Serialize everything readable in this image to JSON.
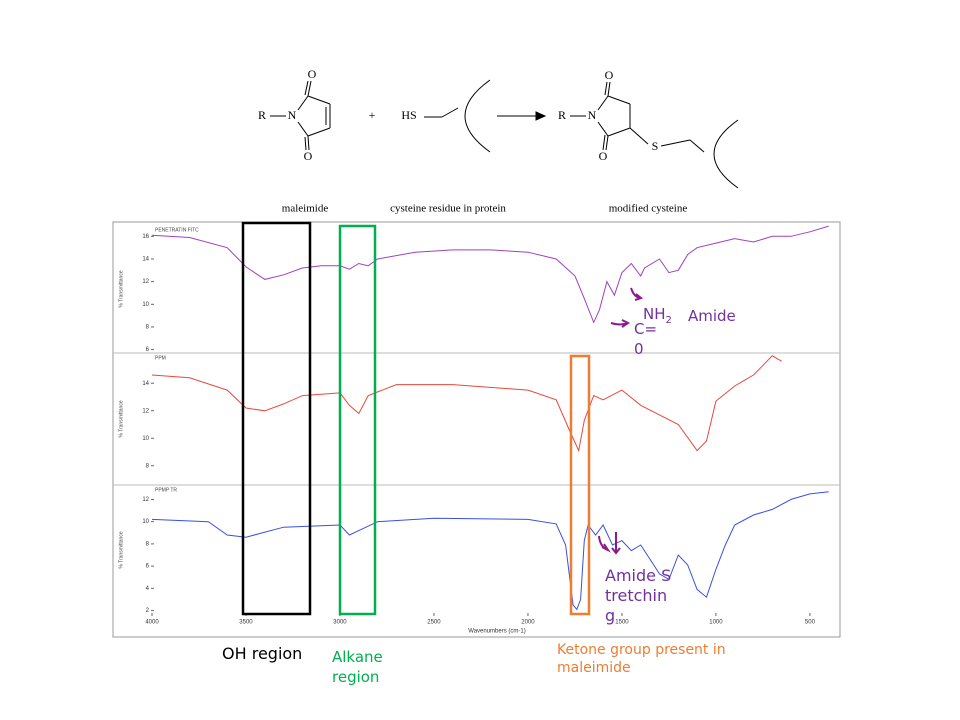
{
  "reaction": {
    "reactant1": {
      "atoms": [
        "R",
        "N",
        "O",
        "O"
      ],
      "label": "maleimide"
    },
    "plus": "+",
    "reactant2": {
      "atoms": [
        "HS"
      ],
      "label": "cysteine residue in protein"
    },
    "product": {
      "atoms": [
        "R",
        "N",
        "O",
        "O",
        "S"
      ],
      "label": "modified cysteine"
    }
  },
  "chart_data": [
    {
      "type": "line",
      "title": "PENETRATIN FITC",
      "ylabel": "% Transmittance",
      "color": "#a040c0",
      "xlim": [
        4000,
        340
      ],
      "ylim": [
        5.7,
        17
      ],
      "yticks": [
        6,
        8,
        10,
        12,
        14,
        16
      ],
      "x": [
        4000,
        3800,
        3600,
        3500,
        3400,
        3300,
        3200,
        3100,
        3000,
        2950,
        2900,
        2850,
        2800,
        2600,
        2400,
        2200,
        2000,
        1850,
        1750,
        1700,
        1650,
        1620,
        1580,
        1540,
        1500,
        1450,
        1400,
        1380,
        1300,
        1250,
        1200,
        1150,
        1100,
        1000,
        900,
        800,
        700,
        600,
        500,
        400
      ],
      "values": [
        16.1,
        15.9,
        15.0,
        13.3,
        12.2,
        12.6,
        13.2,
        13.4,
        13.4,
        13.1,
        13.6,
        13.4,
        14.0,
        14.6,
        14.8,
        14.8,
        14.6,
        14.0,
        12.5,
        10.5,
        8.4,
        9.5,
        12.0,
        10.8,
        12.8,
        13.6,
        12.5,
        13.2,
        14.0,
        12.8,
        13.0,
        14.4,
        15.0,
        15.4,
        15.8,
        15.5,
        16.0,
        16.0,
        16.4,
        16.9
      ]
    },
    {
      "type": "line",
      "title": "PPM",
      "ylabel": "% Transmittance",
      "color": "#e8483c",
      "xlim": [
        4000,
        340
      ],
      "ylim": [
        6.6,
        16.2
      ],
      "yticks": [
        8,
        10,
        12,
        14
      ],
      "x": [
        4000,
        3800,
        3600,
        3500,
        3400,
        3300,
        3200,
        3000,
        2950,
        2900,
        2850,
        2700,
        2400,
        2000,
        1850,
        1780,
        1730,
        1700,
        1650,
        1600,
        1500,
        1400,
        1300,
        1200,
        1100,
        1050,
        1000,
        900,
        800,
        700,
        650
      ],
      "values": [
        14.6,
        14.4,
        13.5,
        12.2,
        12.0,
        12.5,
        13.1,
        13.3,
        12.4,
        11.8,
        13.1,
        13.9,
        13.9,
        13.5,
        12.8,
        10.6,
        9.1,
        11.3,
        13.1,
        12.8,
        13.5,
        12.4,
        11.7,
        11.0,
        9.1,
        9.8,
        12.7,
        13.8,
        14.6,
        16.0,
        15.6
      ]
    },
    {
      "type": "line",
      "title": "PPMP TR",
      "ylabel": "% Transmittance",
      "color": "#3a4fe0",
      "xlim": [
        4000,
        340
      ],
      "ylim": [
        1.6,
        13.3
      ],
      "yticks": [
        2,
        4,
        6,
        8,
        10,
        12
      ],
      "xticks": [
        4000,
        3500,
        3000,
        2500,
        2000,
        1500,
        1000,
        500
      ],
      "xlabel": "Wavenumbers (cm-1)",
      "x": [
        4000,
        3700,
        3600,
        3500,
        3300,
        3000,
        2950,
        2900,
        2800,
        2500,
        2000,
        1850,
        1800,
        1760,
        1740,
        1720,
        1700,
        1680,
        1640,
        1600,
        1550,
        1500,
        1450,
        1400,
        1350,
        1300,
        1250,
        1200,
        1150,
        1100,
        1050,
        1000,
        950,
        900,
        800,
        700,
        600,
        500,
        400
      ],
      "values": [
        10.2,
        10.0,
        8.8,
        8.6,
        9.5,
        9.7,
        8.8,
        9.2,
        10.0,
        10.3,
        10.2,
        9.8,
        7.9,
        2.5,
        2.1,
        3.0,
        8.3,
        9.7,
        8.8,
        9.7,
        7.9,
        8.3,
        7.4,
        7.9,
        6.6,
        5.3,
        4.8,
        7.0,
        6.1,
        3.9,
        3.2,
        5.7,
        7.9,
        9.7,
        10.6,
        11.1,
        12.0,
        12.5,
        12.7
      ]
    }
  ],
  "annotations": {
    "oh_region": "OH region",
    "alkane_region": "Alkane region",
    "ketone": "Ketone group present in maleimide",
    "nh2": {
      "text": "NH",
      "subscript": "2"
    },
    "amide": "Amide",
    "carbonyl": "C= 0",
    "amide_stretching": "Amide Stretching"
  }
}
